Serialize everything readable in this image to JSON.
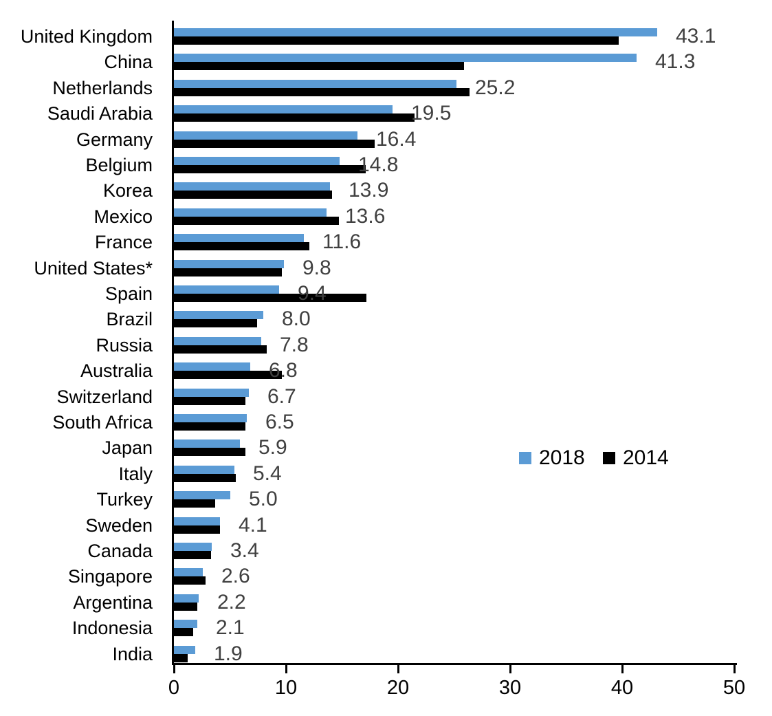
{
  "chart_data": {
    "type": "bar",
    "orientation": "horizontal",
    "title": "",
    "xlabel": "",
    "ylabel": "",
    "xlim": [
      0,
      50
    ],
    "xticks": [
      "0",
      "10",
      "20",
      "30",
      "40",
      "50"
    ],
    "grid": false,
    "legend_position": "middle-right",
    "categories": [
      "United Kingdom",
      "China",
      "Netherlands",
      "Saudi Arabia",
      "Germany",
      "Belgium",
      "Korea",
      "Mexico",
      "France",
      "United States*",
      "Spain",
      "Brazil",
      "Russia",
      "Australia",
      "Switzerland",
      "South Africa",
      "Japan",
      "Italy",
      "Turkey",
      "Sweden",
      "Canada",
      "Singapore",
      "Argentina",
      "Indonesia",
      "India"
    ],
    "series": [
      {
        "name": "2018",
        "color": "#5B9BD5",
        "values": [
          43.1,
          41.3,
          25.2,
          19.5,
          16.4,
          14.8,
          13.9,
          13.6,
          11.6,
          9.8,
          9.4,
          8.0,
          7.8,
          6.8,
          6.7,
          6.5,
          5.9,
          5.4,
          5.0,
          4.1,
          3.4,
          2.6,
          2.2,
          2.1,
          1.9
        ]
      },
      {
        "name": "2014",
        "color": "#000000",
        "values": [
          39.7,
          25.9,
          26.4,
          21.5,
          17.9,
          17.1,
          14.1,
          14.7,
          12.1,
          9.6,
          17.2,
          7.4,
          8.3,
          9.6,
          6.4,
          6.4,
          6.4,
          5.5,
          3.7,
          4.1,
          3.3,
          2.8,
          2.1,
          1.7,
          1.2
        ]
      }
    ],
    "value_labels": [
      "43.1",
      "41.3",
      "25.2",
      "19.5",
      "16.4",
      "14.8",
      "13.9",
      "13.6",
      "11.6",
      "9.8",
      "9.4",
      "8.0",
      "7.8",
      "6.8",
      "6.7",
      "6.5",
      "5.9",
      "5.4",
      "5.0",
      "4.1",
      "3.4",
      "2.6",
      "2.2",
      "2.1",
      "1.9"
    ],
    "value_label_color": "#404040",
    "axis_color": "#000000"
  }
}
